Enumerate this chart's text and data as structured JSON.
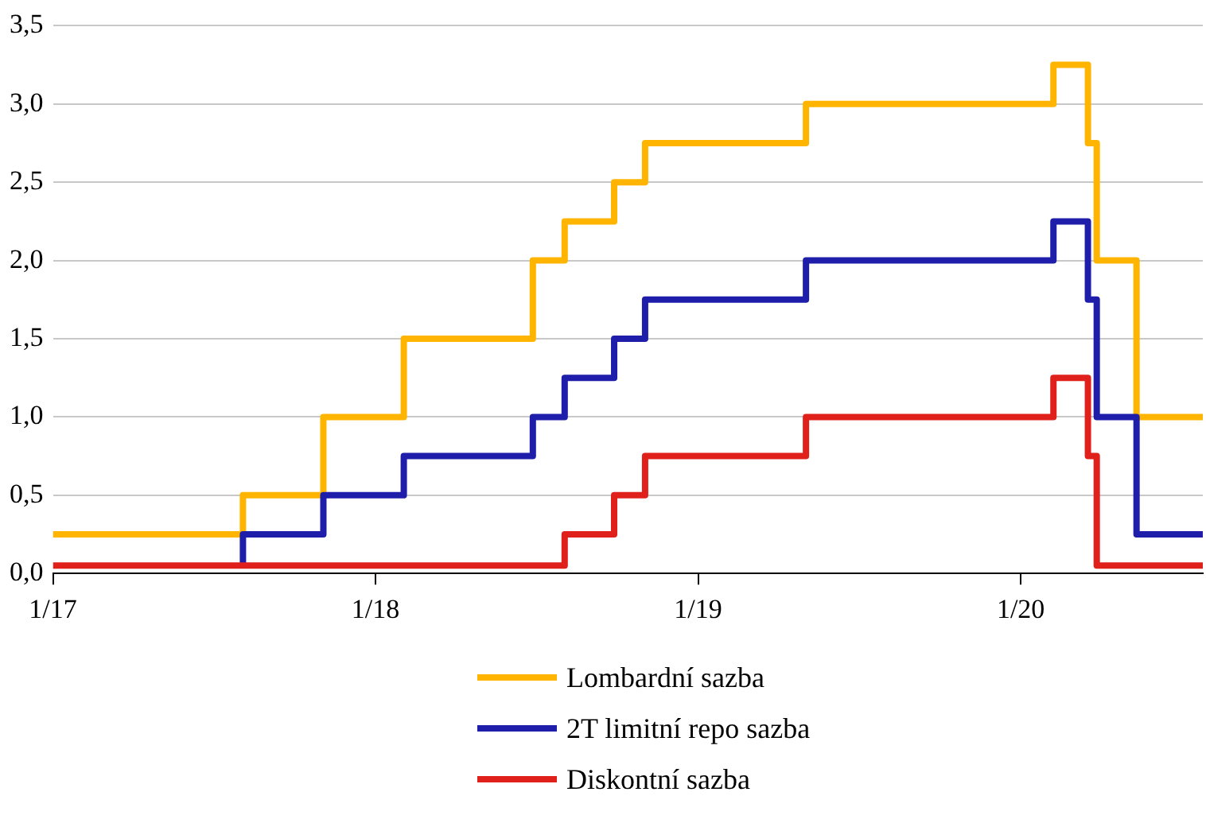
{
  "chart_data": {
    "type": "step",
    "xlim": [
      "2017-01-01",
      "2020-07-25"
    ],
    "xticks": [
      {
        "value": "2017-01-01",
        "label": "1/17"
      },
      {
        "value": "2018-01-01",
        "label": "1/18"
      },
      {
        "value": "2019-01-01",
        "label": "1/19"
      },
      {
        "value": "2020-01-01",
        "label": "1/20"
      }
    ],
    "ylim": [
      0,
      3.5
    ],
    "yticks": [
      {
        "value": 0,
        "label": "0,0"
      },
      {
        "value": 0.5,
        "label": "0,5"
      },
      {
        "value": 1,
        "label": "1,0"
      },
      {
        "value": 1.5,
        "label": "1,5"
      },
      {
        "value": 2,
        "label": "2,0"
      },
      {
        "value": 2.5,
        "label": "2,5"
      },
      {
        "value": 3,
        "label": "3,0"
      },
      {
        "value": 3.5,
        "label": "3,5"
      }
    ],
    "grid": "y",
    "legend": "bottom",
    "series": [
      {
        "name": "Lombardní sazba",
        "color": "#ffb400",
        "x": [
          "2017-01-01",
          "2017-08-04",
          "2017-11-03",
          "2018-02-02",
          "2018-06-28",
          "2018-08-03",
          "2018-09-28",
          "2018-11-02",
          "2019-05-03",
          "2020-02-07",
          "2020-03-17",
          "2020-03-27",
          "2020-05-11",
          "2020-07-25"
        ],
        "values": [
          0.25,
          0.5,
          1.0,
          1.5,
          2.0,
          2.25,
          2.5,
          2.75,
          3.0,
          3.25,
          2.75,
          2.0,
          1.0,
          1.0
        ]
      },
      {
        "name": "2T limitní repo sazba",
        "color": "#1e1eaa",
        "x": [
          "2017-08-04",
          "2017-08-04",
          "2017-11-03",
          "2018-02-02",
          "2018-06-28",
          "2018-08-03",
          "2018-09-28",
          "2018-11-02",
          "2019-05-03",
          "2020-02-07",
          "2020-03-17",
          "2020-03-27",
          "2020-05-11",
          "2020-07-25"
        ],
        "values": [
          0.05,
          0.25,
          0.5,
          0.75,
          1.0,
          1.25,
          1.5,
          1.75,
          2.0,
          2.25,
          1.75,
          1.0,
          0.25,
          0.25
        ]
      },
      {
        "name": "Diskontní sazba",
        "color": "#e0201b",
        "x": [
          "2017-01-01",
          "2018-08-03",
          "2018-09-28",
          "2018-11-02",
          "2019-05-03",
          "2020-02-07",
          "2020-03-17",
          "2020-03-27",
          "2020-07-25"
        ],
        "values": [
          0.05,
          0.25,
          0.5,
          0.75,
          1.0,
          1.25,
          0.75,
          0.05,
          0.05
        ]
      }
    ]
  }
}
